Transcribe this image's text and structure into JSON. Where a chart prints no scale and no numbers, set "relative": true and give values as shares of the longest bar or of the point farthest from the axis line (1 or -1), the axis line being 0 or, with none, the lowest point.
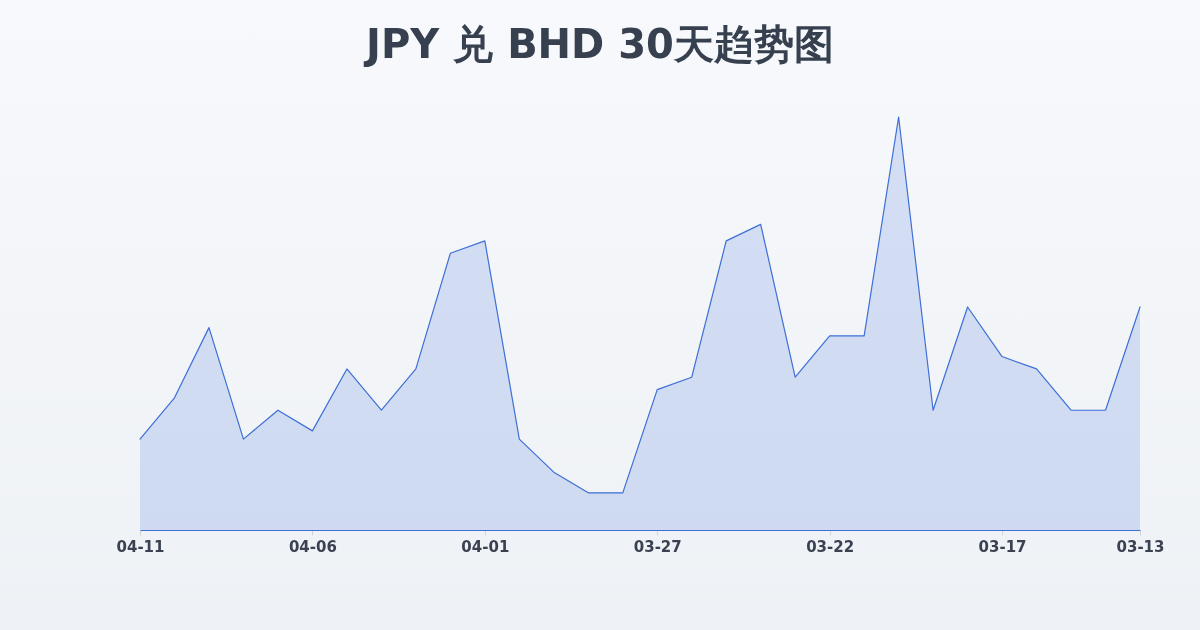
{
  "chart_data": {
    "type": "area",
    "title": "JPY 兑 BHD 30天趋势图",
    "relative": true,
    "color": "#3d6fd6",
    "categories": [
      "04-11",
      null,
      null,
      null,
      null,
      "04-06",
      null,
      null,
      null,
      null,
      "04-01",
      null,
      null,
      null,
      null,
      "03-27",
      null,
      null,
      null,
      null,
      "03-22",
      null,
      null,
      null,
      null,
      "03-17",
      null,
      null,
      null,
      "03-13"
    ],
    "values": [
      0.22,
      0.32,
      0.49,
      0.22,
      0.29,
      0.24,
      0.39,
      0.29,
      0.39,
      0.67,
      0.7,
      0.22,
      0.14,
      0.09,
      0.09,
      0.34,
      0.37,
      0.7,
      0.74,
      0.37,
      0.47,
      0.47,
      1,
      0.29,
      0.54,
      0.42,
      0.39,
      0.29,
      0.29,
      0.54
    ]
  }
}
